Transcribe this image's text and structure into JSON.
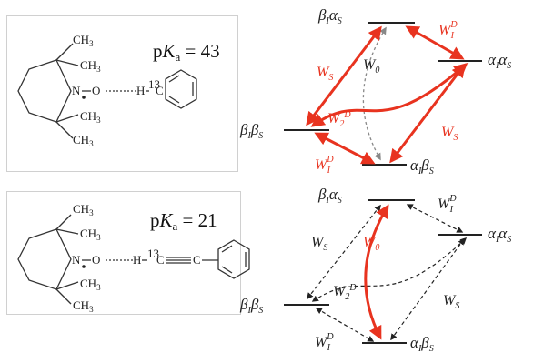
{
  "colors": {
    "red": "#e8331f",
    "black": "#222222",
    "gray": "#888888",
    "box_border": "#d0d0d0"
  },
  "panels": [
    {
      "pka": {
        "prefix": "p",
        "k": "K",
        "sub": "a",
        "rest": " = 43"
      },
      "molecule": {
        "ch3_labels": [
          "CH",
          "CH",
          "CH",
          "CH"
        ],
        "ch3_sub": "3",
        "n": "N",
        "o": "O",
        "h": "H",
        "iso": "13",
        "c": "C"
      },
      "levels": {
        "top": {
          "a": "β",
          "ai": "I",
          "b": "α",
          "bi": "S"
        },
        "right": {
          "a": "α",
          "ai": "I",
          "b": "α",
          "bi": "S"
        },
        "left": {
          "a": "β",
          "ai": "I",
          "b": "β",
          "bi": "S"
        },
        "bottom": {
          "a": "α",
          "ai": "I",
          "b": "β",
          "bi": "S"
        }
      },
      "rates": {
        "w_s_left": {
          "w": "W",
          "sub": "S"
        },
        "w0": {
          "w": "W",
          "sub": "0"
        },
        "w1d_top": {
          "w": "W",
          "sub": "I",
          "sup": "D"
        },
        "w2d": {
          "w": "W",
          "sub": "2",
          "sup": "D"
        },
        "w_s_right": {
          "w": "W",
          "sub": "S"
        },
        "w1d_bottom": {
          "w": "W",
          "sub": "I",
          "sup": "D"
        }
      }
    },
    {
      "pka": {
        "prefix": "p",
        "k": "K",
        "sub": "a",
        "rest": " = 21"
      },
      "molecule": {
        "ch3_labels": [
          "CH",
          "CH",
          "CH",
          "CH"
        ],
        "ch3_sub": "3",
        "n": "N",
        "o": "O",
        "h": "H",
        "iso": "13",
        "c": "C",
        "c2": "C"
      },
      "levels": {
        "top": {
          "a": "β",
          "ai": "I",
          "b": "α",
          "bi": "S"
        },
        "right": {
          "a": "α",
          "ai": "I",
          "b": "α",
          "bi": "S"
        },
        "left": {
          "a": "β",
          "ai": "I",
          "b": "β",
          "bi": "S"
        },
        "bottom": {
          "a": "α",
          "ai": "I",
          "b": "β",
          "bi": "S"
        }
      },
      "rates": {
        "w_s_left": {
          "w": "W",
          "sub": "S"
        },
        "w0": {
          "w": "W",
          "sub": "0"
        },
        "w1d_top": {
          "w": "W",
          "sub": "I",
          "sup": "D"
        },
        "w2d": {
          "w": "W",
          "sub": "2",
          "sup": "D"
        },
        "w_s_right": {
          "w": "W",
          "sub": "S"
        },
        "w1d_bottom": {
          "w": "W",
          "sub": "I",
          "sup": "D"
        }
      }
    }
  ]
}
